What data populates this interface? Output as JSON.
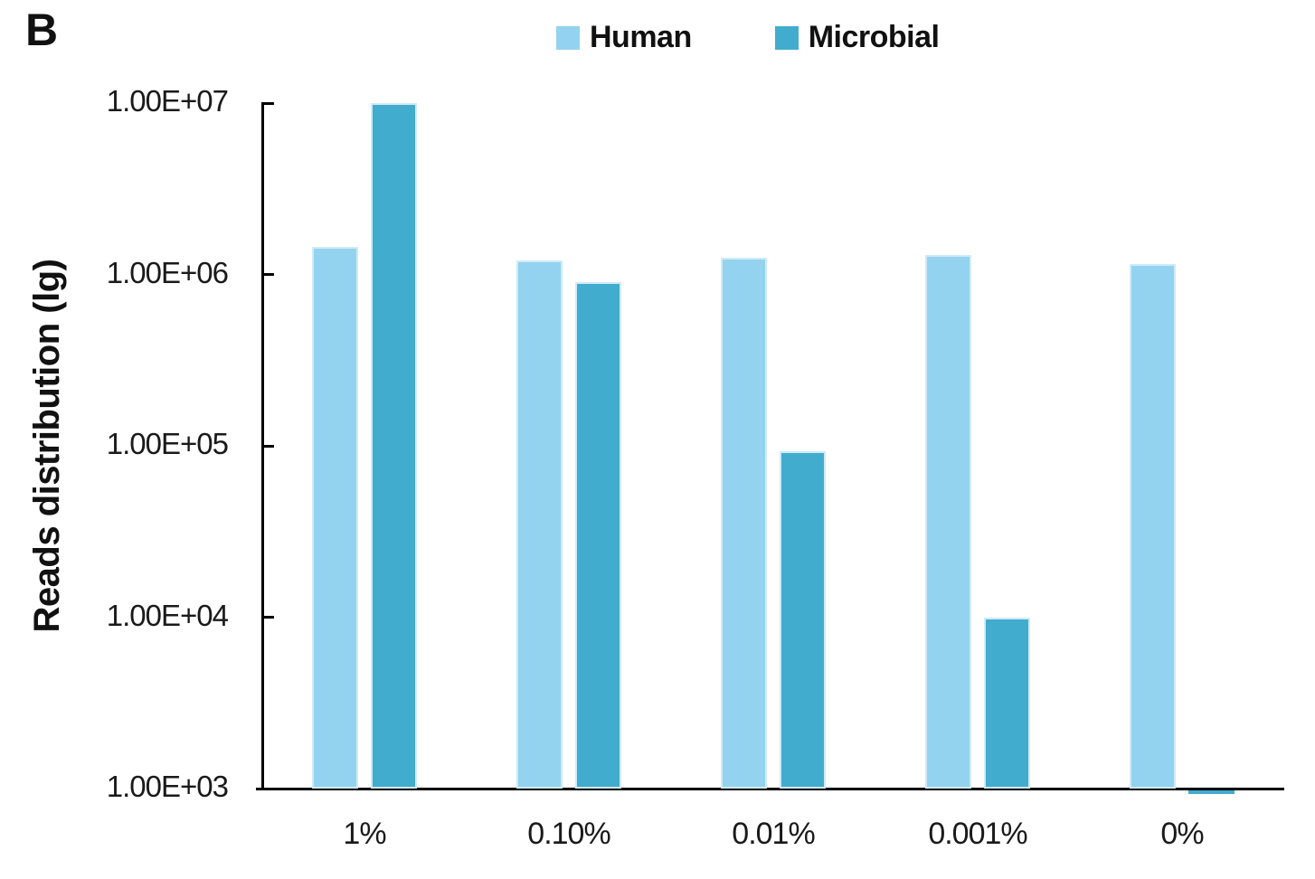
{
  "panel_label": "B",
  "colors": {
    "human": "#93D3EF",
    "microbial": "#41ACCE",
    "bar_edge": "#CFEAF8",
    "axis": "#000000",
    "text": "#1A1A1A"
  },
  "chart_data": {
    "type": "bar",
    "scale": "log",
    "title": "",
    "xlabel": "",
    "ylabel": "Reads distribution (lg)",
    "categories": [
      "1%",
      "0.10%",
      "0.01%",
      "0.001%",
      "0%"
    ],
    "series": [
      {
        "name": "Human",
        "color": "#93D3EF",
        "values": [
          1450000,
          1200000,
          1250000,
          1300000,
          1150000
        ]
      },
      {
        "name": "Microbial",
        "color": "#41ACCE",
        "values": [
          10000000,
          900000,
          93000,
          10000,
          1000
        ]
      }
    ],
    "ylim": [
      1000,
      10000000
    ],
    "y_ticks_top_to_bottom": [
      "1.00E+07",
      "1.00E+06",
      "1.00E+05",
      "1.00E+04",
      "1.00E+03"
    ],
    "grid": false,
    "legend_position": "top-center"
  }
}
